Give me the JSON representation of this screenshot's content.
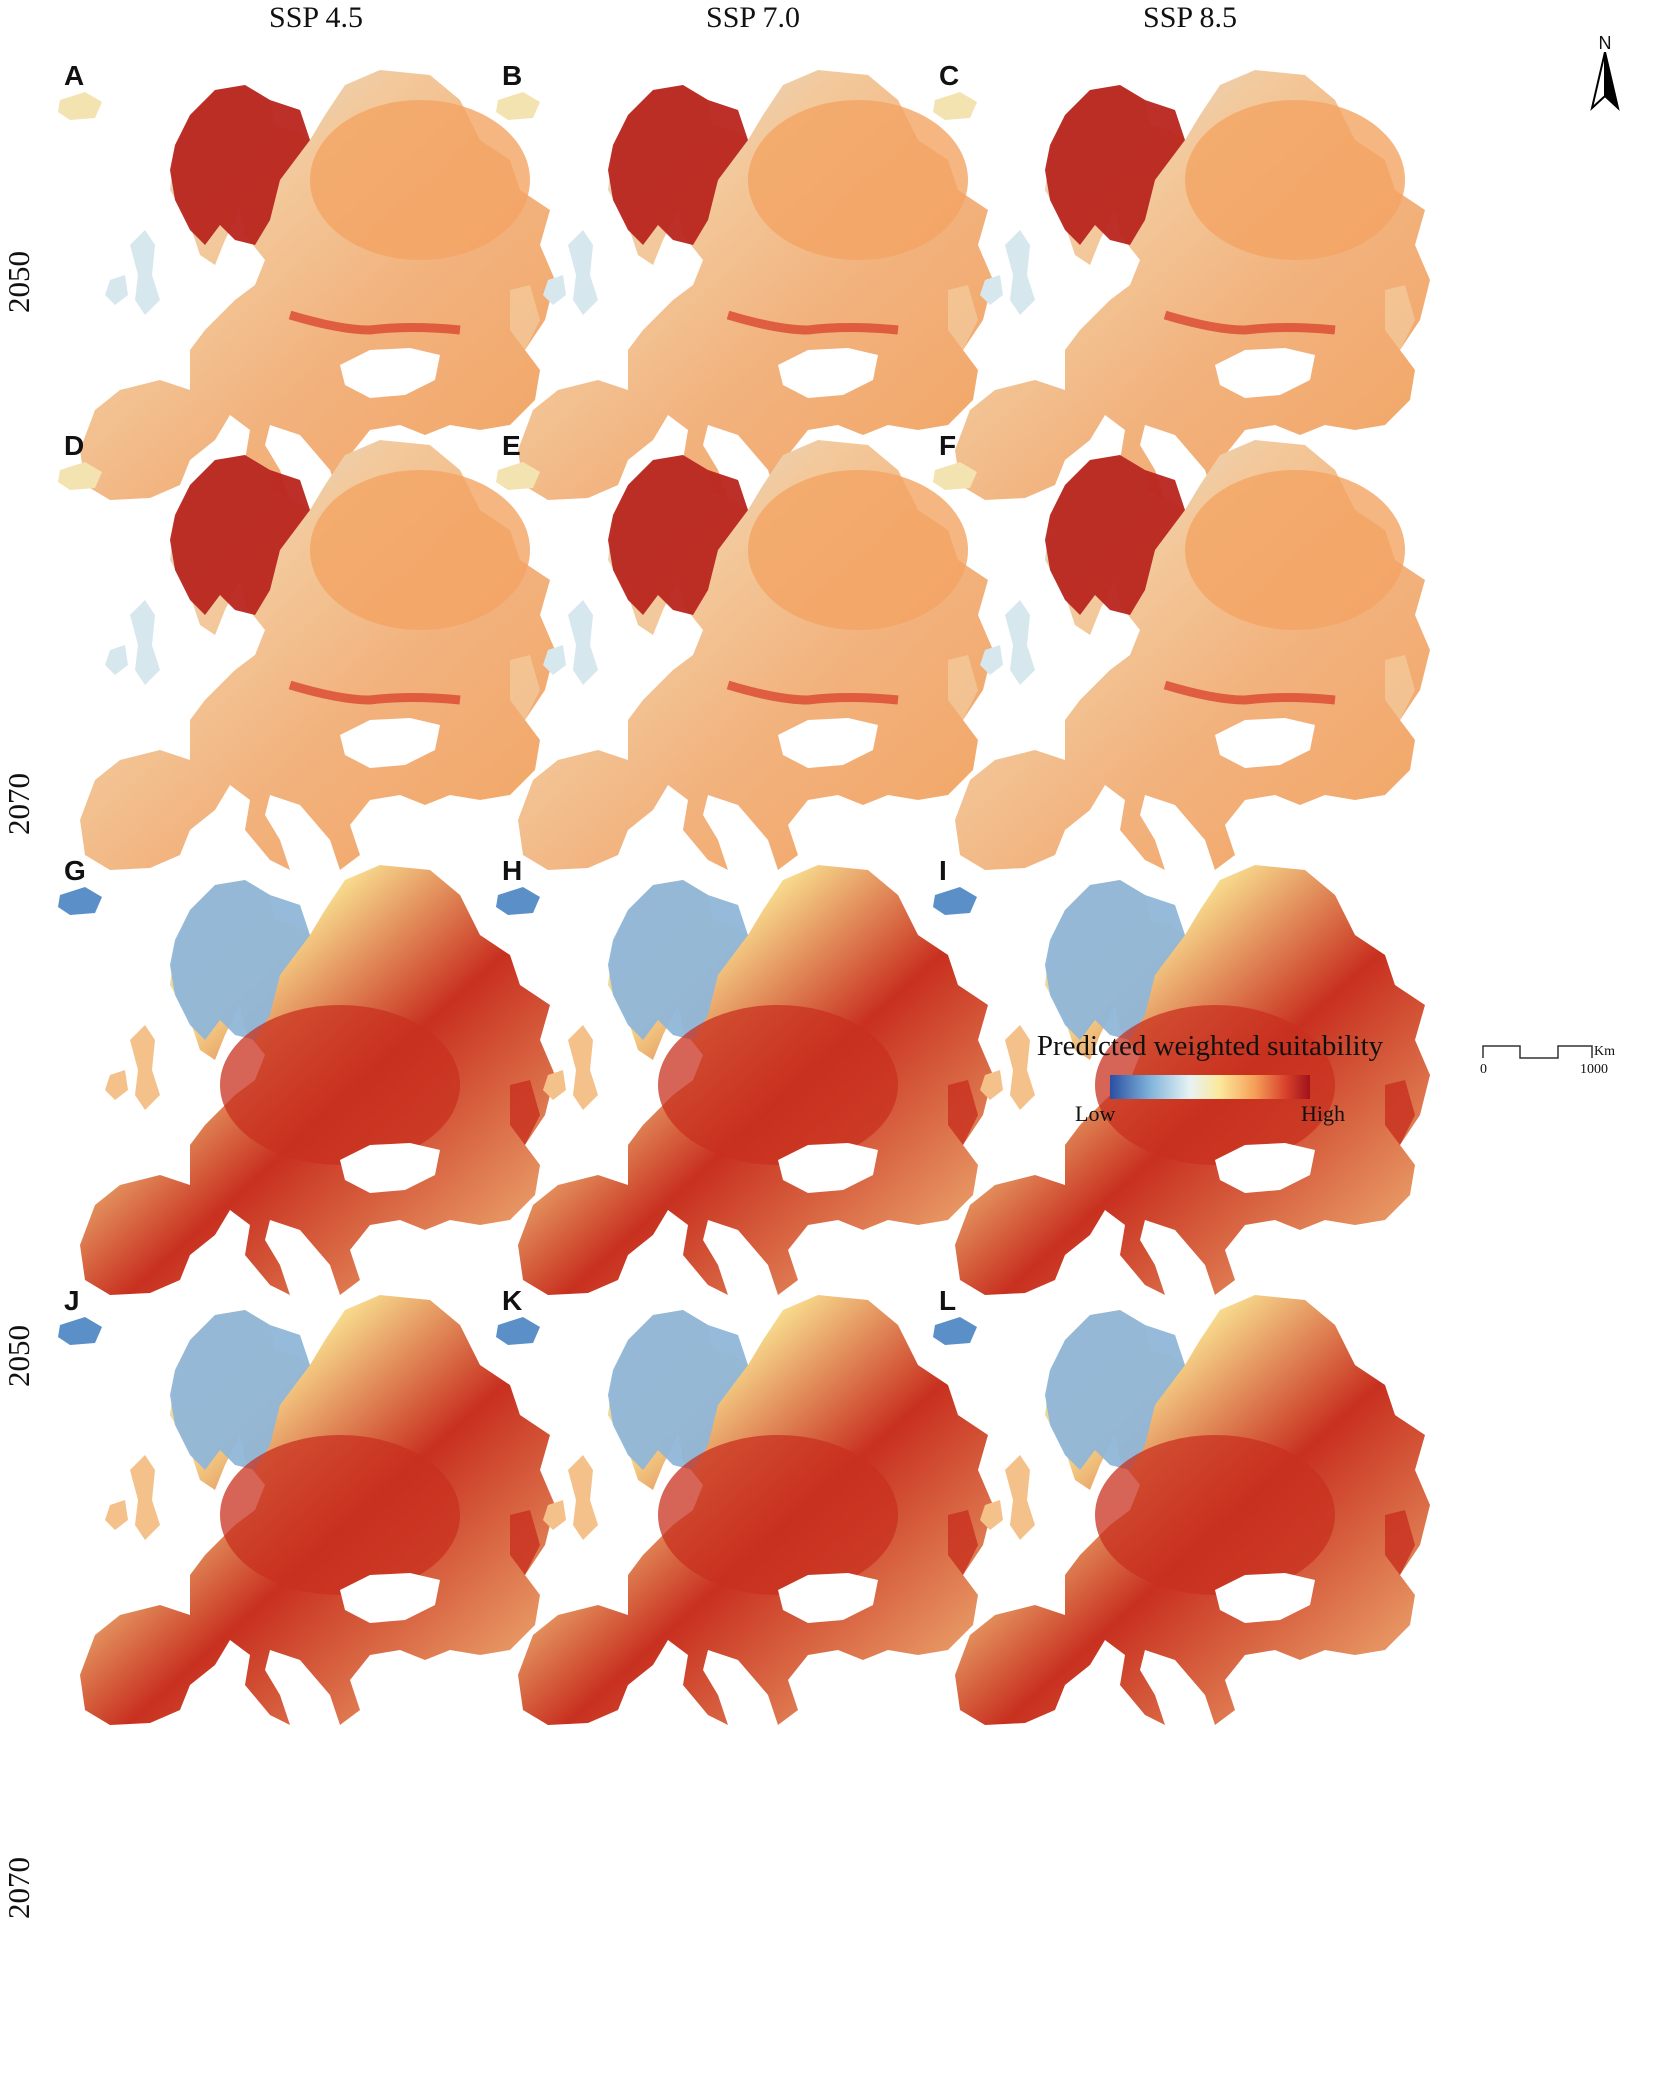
{
  "columns": [
    "SSP 4.5",
    "SSP 7.0",
    "SSP 8.5"
  ],
  "row_labels": [
    "2050",
    "2070",
    "2050",
    "2070"
  ],
  "panels": [
    {
      "letter": "A",
      "scenario": "SSP 4.5",
      "year": "2050",
      "group": "upper"
    },
    {
      "letter": "B",
      "scenario": "SSP 7.0",
      "year": "2050",
      "group": "upper"
    },
    {
      "letter": "C",
      "scenario": "SSP 8.5",
      "year": "2050",
      "group": "upper"
    },
    {
      "letter": "D",
      "scenario": "SSP 4.5",
      "year": "2070",
      "group": "upper"
    },
    {
      "letter": "E",
      "scenario": "SSP 7.0",
      "year": "2070",
      "group": "upper"
    },
    {
      "letter": "F",
      "scenario": "SSP 8.5",
      "year": "2070",
      "group": "upper"
    },
    {
      "letter": "G",
      "scenario": "SSP 4.5",
      "year": "2050",
      "group": "lower"
    },
    {
      "letter": "H",
      "scenario": "SSP 7.0",
      "year": "2050",
      "group": "lower"
    },
    {
      "letter": "I",
      "scenario": "SSP 8.5",
      "year": "2050",
      "group": "lower"
    },
    {
      "letter": "J",
      "scenario": "SSP 4.5",
      "year": "2070",
      "group": "lower"
    },
    {
      "letter": "K",
      "scenario": "SSP 7.0",
      "year": "2070",
      "group": "lower"
    },
    {
      "letter": "L",
      "scenario": "SSP 8.5",
      "year": "2070",
      "group": "lower"
    }
  ],
  "legend": {
    "title": "Predicted weighted suitability",
    "low": "Low",
    "high": "High",
    "colors": [
      "#2b4ea3",
      "#7fb3d9",
      "#e7f3f4",
      "#fbe89a",
      "#f5a15a",
      "#d7402b",
      "#a1121a"
    ]
  },
  "north_arrow": {
    "label": "N"
  },
  "scale_bar": {
    "start": "0",
    "end": "1000",
    "unit": "Km"
  },
  "map_colors": {
    "upper": {
      "base": "#f3c89a",
      "north": "#b8251e",
      "east": "#f2a463",
      "west": "#d7e7ee",
      "south": "#f2b27d",
      "band": "#d9472f"
    },
    "lower": {
      "base": "#f7d98c",
      "north": "#8fb6d8",
      "east": "#f4c07f",
      "west": "#bcd7e4",
      "south": "#f4c18a",
      "band": "#c8301f"
    }
  }
}
